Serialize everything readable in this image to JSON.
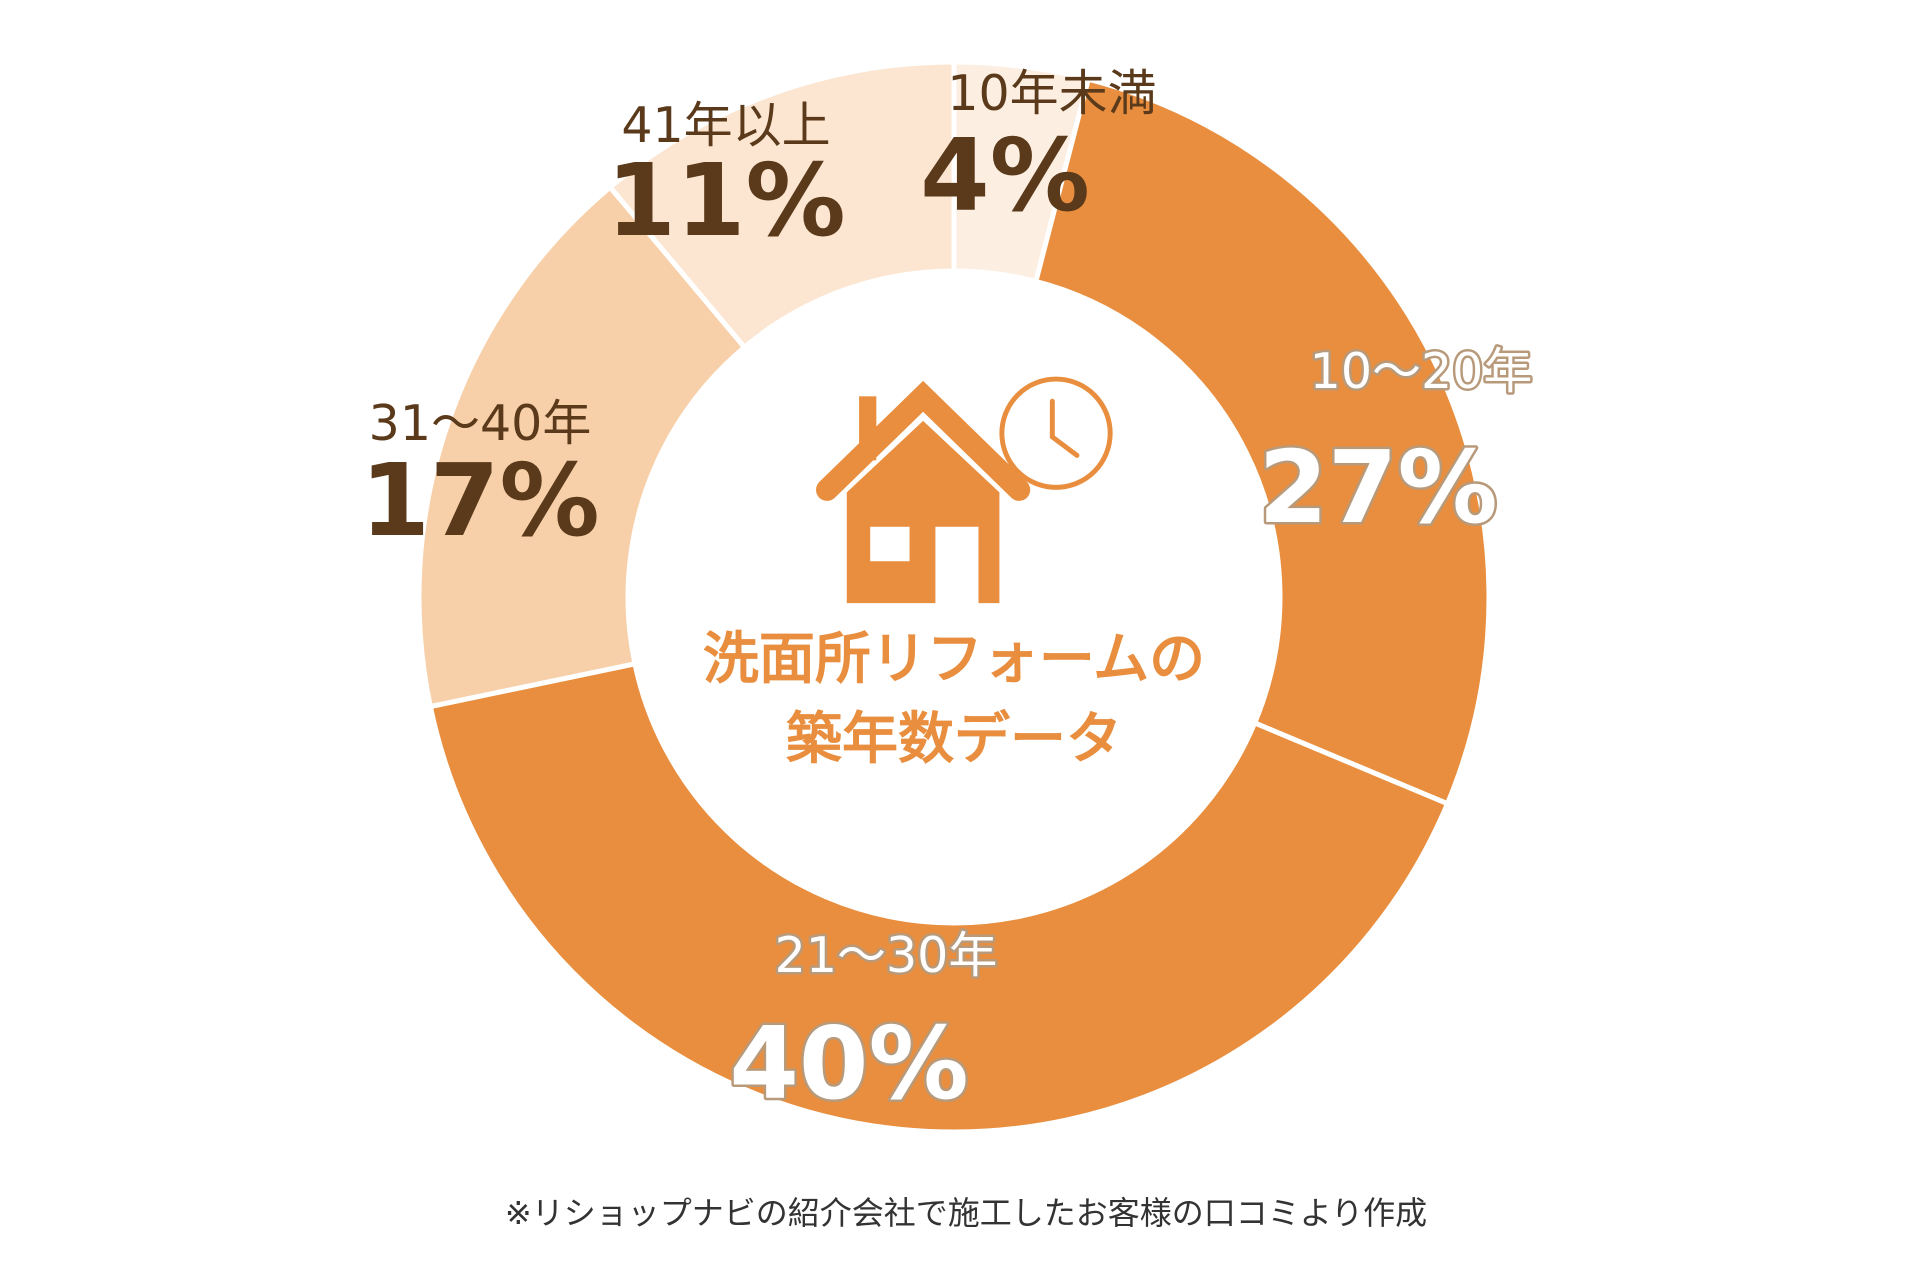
{
  "chart_data": {
    "type": "pie",
    "variant": "donut",
    "title": "洗面所リフォームの築年数データ",
    "title_lines": [
      "洗面所リフォームの",
      "築年数データ"
    ],
    "start": "top",
    "direction": "clockwise",
    "slices": [
      {
        "label": "10年未満",
        "value": 4,
        "value_label": "4%",
        "color": "#FDEEE2",
        "text_style": "dark"
      },
      {
        "label": "10〜20年",
        "value": 27,
        "value_label": "27%",
        "color": "#E88E3E",
        "text_style": "light"
      },
      {
        "label": "21〜30年",
        "value": 40,
        "value_label": "40%",
        "color": "#E88E3E",
        "text_style": "light"
      },
      {
        "label": "31〜40年",
        "value": 17,
        "value_label": "17%",
        "color": "#F7D0AA",
        "text_style": "dark"
      },
      {
        "label": "41年以上",
        "value": 11,
        "value_label": "11%",
        "color": "#FCE6D2",
        "text_style": "dark"
      }
    ],
    "center_icon": "house-clock-icon",
    "footnote": "※リショップナビの紹介会社で施工したお客様の口コミより作成"
  },
  "colors": {
    "accent": "#E88E3E",
    "text_dark": "#5A3A1A"
  }
}
